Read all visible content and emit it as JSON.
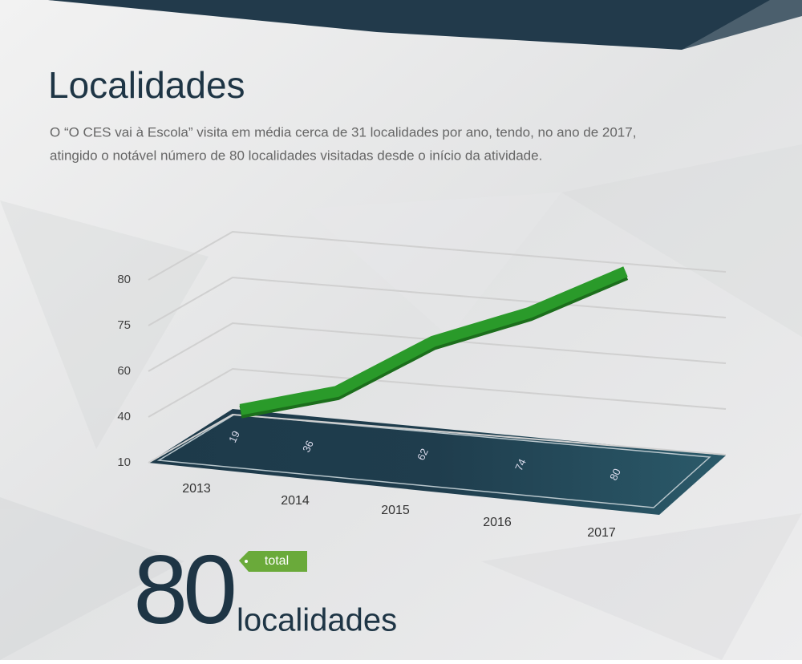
{
  "header": {
    "title": "Localidades",
    "text": [
      "O “O CES vai à Escola” visita em média cerca de 31 localidades por ano, tendo, no ano de 2017,",
      "atingido o notável número de 80 localidades visitadas desde o início da atividade."
    ]
  },
  "chart_data": {
    "type": "line",
    "categories": [
      "2013",
      "2014",
      "2015",
      "2016",
      "2017"
    ],
    "values": [
      19,
      36,
      62,
      74,
      80
    ],
    "color": "#2a9a2a",
    "ylim": [
      10,
      80
    ],
    "yticks": [
      10,
      40,
      60,
      75,
      80
    ],
    "grid": true
  },
  "highlight": {
    "value": 80,
    "tag": "total",
    "unit": "localidades"
  }
}
